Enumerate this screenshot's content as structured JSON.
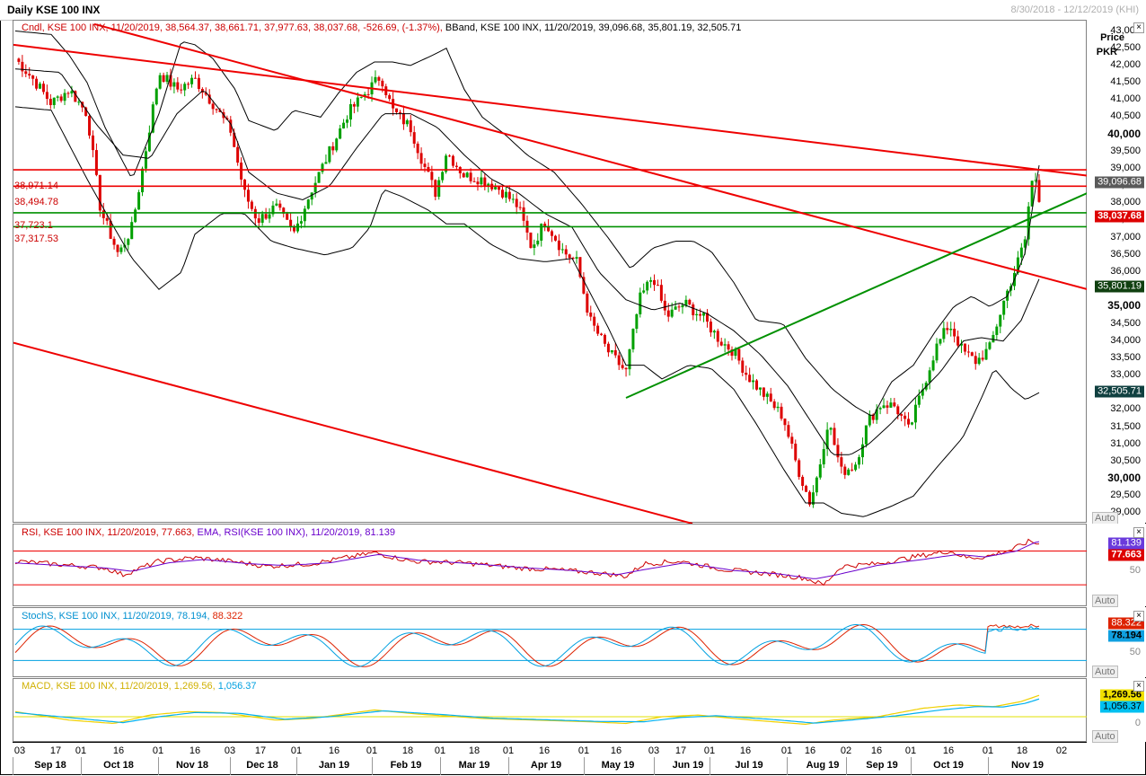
{
  "header": {
    "title": "Daily KSE 100 INX",
    "range": "8/30/2018 - 12/12/2019 (KHI)"
  },
  "price_pane": {
    "legend_cndl": "Cndl, KSE 100 INX, 11/20/2019, 38,564.37, 38,661.71, 37,977.63, 38,037.68, -526.69, (-1.37%),",
    "legend_bband": "BBand, KSE 100 INX, 11/20/2019, 39,096.68, 35,801.19, 32,505.71",
    "axis_title_1": "Price",
    "axis_title_2": "PKR",
    "ticks": [
      "43,000",
      "42,500",
      "42,000",
      "41,500",
      "41,000",
      "40,500",
      "40,000",
      "39,500",
      "39,000",
      "38,500",
      "38,000",
      "37,500",
      "37,000",
      "36,500",
      "36,000",
      "35,500",
      "35,000",
      "34,500",
      "34,000",
      "33,500",
      "33,000",
      "32,500",
      "32,000",
      "31,500",
      "31,000",
      "30,500",
      "30,000",
      "29,500",
      "29,000"
    ],
    "h_levels": [
      "38,971.14",
      "38,494.78",
      "37,723.1",
      "37,317.53"
    ],
    "last_close": "38,037.68",
    "bb_upper": "39,096.68",
    "bb_mid": "35,801.19",
    "bb_lower": "32,505.71",
    "auto_label": "Auto"
  },
  "rsi_pane": {
    "legend_rsi": "RSI, KSE 100 INX, 11/20/2019, 77.663,",
    "legend_ema": "EMA, RSI(KSE 100 INX), 11/20/2019, 81.139",
    "ema_value": "81.139",
    "rsi_value": "77.663",
    "tick_50": "50",
    "auto_label": "Auto"
  },
  "stoch_pane": {
    "legend_k": "StochS, KSE 100 INX, 11/20/2019, 78.194,",
    "legend_d": "88.322",
    "d_value": "88.322",
    "k_value": "78.194",
    "tick_50": "50",
    "auto_label": "Auto"
  },
  "macd_pane": {
    "legend_macd": "MACD, KSE 100 INX, 11/20/2019, 1,269.56,",
    "legend_signal": "1,056.37",
    "macd_value": "1,269.56",
    "signal_value": "1,056.37",
    "tick_0": "0",
    "auto_label": "Auto"
  },
  "xaxis": {
    "days": [
      "03",
      "17",
      "01",
      "16",
      "01",
      "16",
      "03",
      "17",
      "01",
      "16",
      "01",
      "18",
      "01",
      "18",
      "01",
      "16",
      "01",
      "16",
      "03",
      "17",
      "01",
      "16",
      "01",
      "16",
      "02",
      "16",
      "01",
      "16",
      "01",
      "18",
      "02"
    ],
    "months": [
      "Sep 18",
      "Oct 18",
      "Nov 18",
      "Dec 18",
      "Jan 19",
      "Feb 19",
      "Mar 19",
      "Apr 19",
      "May 19",
      "Jun 19",
      "Jul 19",
      "Aug 19",
      "Sep 19",
      "Oct 19",
      "Nov 19"
    ]
  },
  "colors": {
    "candle_up": "#00a000",
    "candle_down": "#dd0000",
    "trend_red": "#ee0000",
    "trend_green": "#009000",
    "bband": "#000000",
    "rsi": "#cc0000",
    "rsi_ema": "#6a00cc",
    "stoch_k": "#00a0e0",
    "stoch_d": "#dd2200",
    "macd": "#f0d000",
    "macd_signal": "#00b0f0"
  },
  "chart_data": {
    "type": "line",
    "title": "Daily KSE 100 INX",
    "ylabel": "Price PKR",
    "ylim": [
      28700,
      43300
    ],
    "x": [
      "2018-08-30",
      "2018-09-15",
      "2018-10-01",
      "2018-10-16",
      "2018-11-01",
      "2018-11-16",
      "2018-12-03",
      "2018-12-17",
      "2019-01-01",
      "2019-01-16",
      "2019-02-01",
      "2019-02-18",
      "2019-03-01",
      "2019-03-18",
      "2019-04-01",
      "2019-04-16",
      "2019-05-02",
      "2019-05-16",
      "2019-06-03",
      "2019-06-17",
      "2019-07-01",
      "2019-07-16",
      "2019-08-01",
      "2019-08-16",
      "2019-09-02",
      "2019-09-16",
      "2019-10-01",
      "2019-10-16",
      "2019-11-01",
      "2019-11-14",
      "2019-11-20"
    ],
    "series": [
      {
        "name": "KSE 100 INX",
        "values": [
          42200,
          41300,
          40900,
          37800,
          41800,
          41200,
          39200,
          37700,
          37600,
          39500,
          41400,
          40800,
          38900,
          38400,
          37000,
          37200,
          35400,
          33800,
          35800,
          35100,
          34400,
          32300,
          30800,
          29800,
          31600,
          32300,
          33500,
          34000,
          34300,
          37000,
          38037.68
        ]
      },
      {
        "name": "BBand",
        "values": [
          42700,
          42300,
          41800,
          40200,
          40400,
          41300,
          40600,
          38600,
          38800,
          40700,
          42000,
          41500,
          40600,
          38700,
          37600,
          37200,
          36100,
          34800,
          35900,
          36000,
          35600,
          33900,
          32200,
          31800,
          31500,
          31800,
          33100,
          34200,
          34300,
          36500,
          39096.68
        ]
      }
    ],
    "horizontal_levels": [
      38971.14,
      38494.78,
      37723.1,
      37317.53
    ],
    "indicators": {
      "rsi": 77.663,
      "rsi_ema": 81.139,
      "stoch_k": 78.194,
      "stoch_d": 88.322,
      "macd": 1269.56,
      "macd_signal": 1056.37,
      "bband_upper": 39096.68,
      "bband_mid": 35801.19,
      "bband_lower": 32505.71
    }
  }
}
